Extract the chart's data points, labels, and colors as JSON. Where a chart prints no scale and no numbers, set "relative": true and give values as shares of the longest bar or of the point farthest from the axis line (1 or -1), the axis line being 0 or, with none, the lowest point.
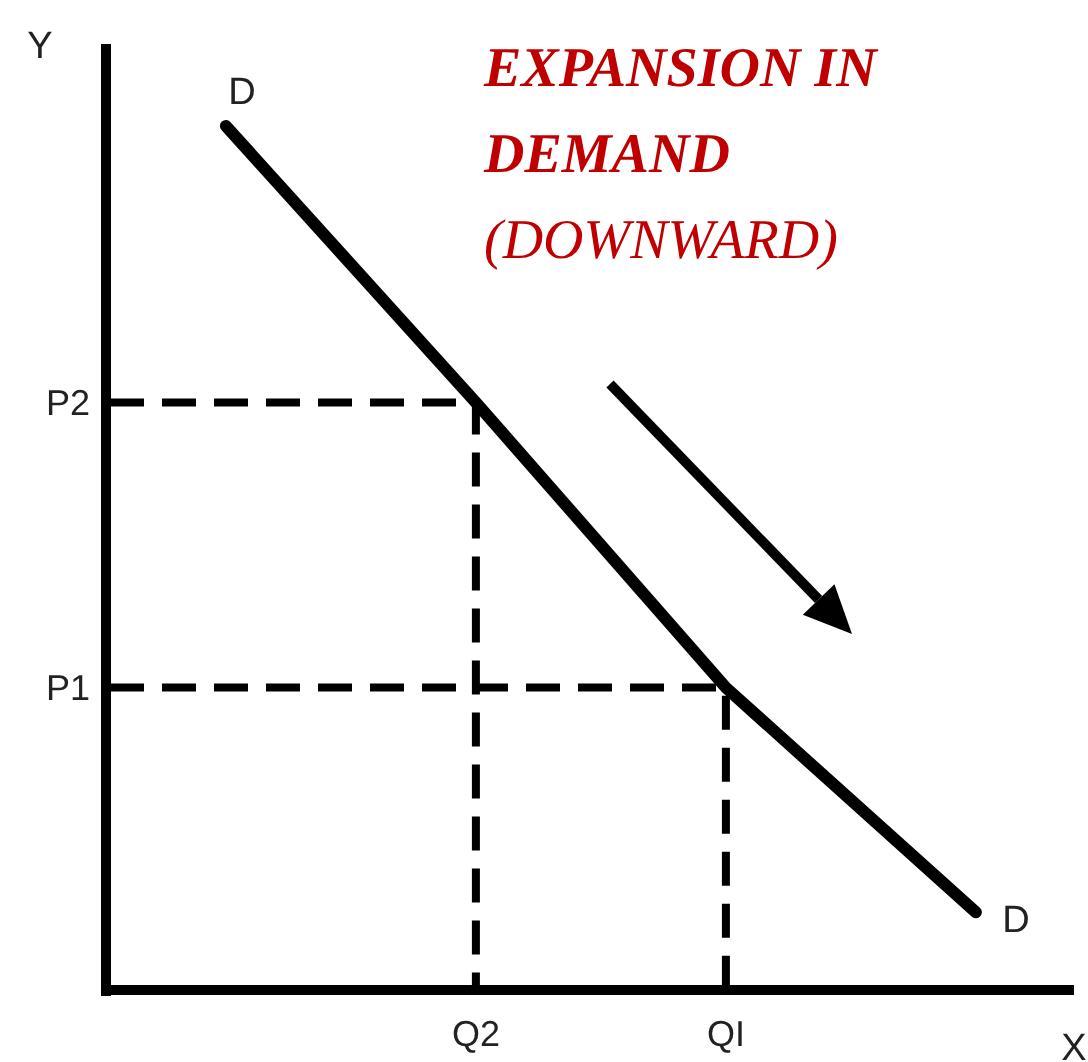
{
  "chart_data": {
    "type": "line",
    "title": "EXPANSION IN DEMAND",
    "subtitle": "(DOWNWARD)",
    "xlabel": "X",
    "ylabel": "Y",
    "categories": [
      null,
      "Q2",
      "QI",
      null
    ],
    "relative": true,
    "series": [
      {
        "name": "D",
        "color": "#000000",
        "values": [
          1,
          0.68,
          0.35,
          0.09
        ]
      }
    ],
    "ref_lines": [
      {
        "axis": "y",
        "value": 0.68,
        "label": "P2",
        "line_style": "dashed",
        "color": "#000000"
      },
      {
        "axis": "y",
        "value": 0.35,
        "label": "P1",
        "line_style": "dashed",
        "color": "#000000"
      }
    ]
  }
}
